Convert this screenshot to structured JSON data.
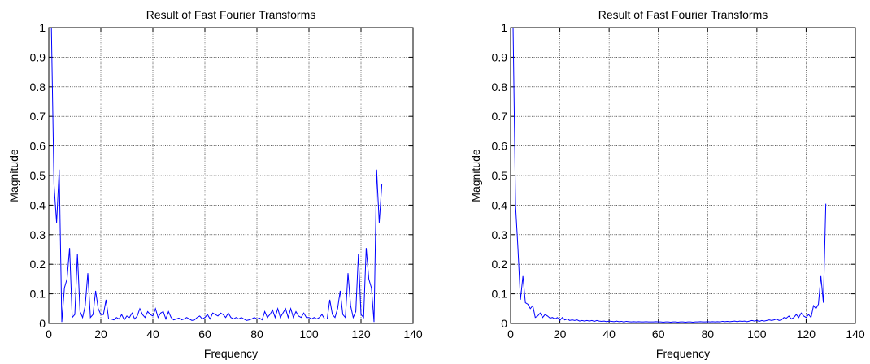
{
  "chart_data": [
    {
      "type": "line",
      "title": "Result of Fast Fourier Transforms",
      "xlabel": "Frequency",
      "ylabel": "Magnitude",
      "xlim": [
        0,
        140
      ],
      "ylim": [
        0,
        1
      ],
      "xticks": [
        "0",
        "20",
        "40",
        "60",
        "80",
        "100",
        "120",
        "140"
      ],
      "yticks": [
        "0",
        "0.1",
        "0.2",
        "0.3",
        "0.4",
        "0.5",
        "0.6",
        "0.7",
        "0.8",
        "0.9",
        "1"
      ],
      "grid": true,
      "line_color": "#0000ff",
      "series": [
        {
          "x": [
            1,
            2,
            3,
            4,
            5,
            6,
            7,
            8,
            9,
            10,
            11,
            12,
            13,
            14,
            15,
            16,
            17,
            18,
            19,
            20,
            21,
            22,
            23,
            24,
            25,
            26,
            27,
            28,
            29,
            30,
            31,
            32,
            33,
            34,
            35,
            36,
            37,
            38,
            39,
            40,
            41,
            42,
            43,
            44,
            45,
            46,
            47,
            48,
            49,
            50,
            51,
            52,
            53,
            54,
            55,
            56,
            57,
            58,
            59,
            60,
            61,
            62,
            63,
            64,
            65,
            66,
            67,
            68,
            69,
            70,
            71,
            72,
            73,
            74,
            75,
            76,
            77,
            78,
            79,
            80,
            81,
            82,
            83,
            84,
            85,
            86,
            87,
            88,
            89,
            90,
            91,
            92,
            93,
            94,
            95,
            96,
            97,
            98,
            99,
            100,
            101,
            102,
            103,
            104,
            105,
            106,
            107,
            108,
            109,
            110,
            111,
            112,
            113,
            114,
            115,
            116,
            117,
            118,
            119,
            120,
            121,
            122,
            123,
            124,
            125,
            126,
            127,
            128
          ],
          "values": [
            1.0,
            0.47,
            0.34,
            0.52,
            0.005,
            0.12,
            0.15,
            0.255,
            0.02,
            0.03,
            0.235,
            0.04,
            0.02,
            0.06,
            0.17,
            0.02,
            0.03,
            0.11,
            0.05,
            0.03,
            0.03,
            0.08,
            0.015,
            0.015,
            0.012,
            0.02,
            0.015,
            0.03,
            0.012,
            0.025,
            0.02,
            0.035,
            0.015,
            0.025,
            0.05,
            0.03,
            0.02,
            0.04,
            0.03,
            0.025,
            0.05,
            0.02,
            0.035,
            0.04,
            0.015,
            0.04,
            0.02,
            0.012,
            0.015,
            0.018,
            0.012,
            0.015,
            0.02,
            0.015,
            0.01,
            0.012,
            0.02,
            0.025,
            0.015,
            0.02,
            0.03,
            0.015,
            0.035,
            0.03,
            0.025,
            0.035,
            0.03,
            0.02,
            0.035,
            0.02,
            0.015,
            0.02,
            0.015,
            0.02,
            0.015,
            0.01,
            0.012,
            0.015,
            0.02,
            0.015,
            0.018,
            0.012,
            0.04,
            0.02,
            0.03,
            0.045,
            0.02,
            0.05,
            0.02,
            0.035,
            0.05,
            0.02,
            0.05,
            0.02,
            0.04,
            0.025,
            0.02,
            0.035,
            0.02,
            0.02,
            0.015,
            0.02,
            0.015,
            0.02,
            0.03,
            0.015,
            0.015,
            0.08,
            0.03,
            0.02,
            0.05,
            0.11,
            0.03,
            0.02,
            0.17,
            0.06,
            0.02,
            0.04,
            0.235,
            0.03,
            0.02,
            0.255,
            0.15,
            0.12,
            0.005,
            0.52,
            0.34,
            0.47
          ]
        }
      ]
    },
    {
      "type": "line",
      "title": "Result of Fast Fourier Transforms",
      "xlabel": "Frequency",
      "ylabel": "Magnitude",
      "xlim": [
        0,
        140
      ],
      "ylim": [
        0,
        1
      ],
      "xticks": [
        "0",
        "20",
        "40",
        "60",
        "80",
        "100",
        "120",
        "140"
      ],
      "yticks": [
        "0",
        "0.1",
        "0.2",
        "0.3",
        "0.4",
        "0.5",
        "0.6",
        "0.7",
        "0.8",
        "0.9",
        "1"
      ],
      "grid": true,
      "line_color": "#0000ff",
      "series": [
        {
          "x": [
            1,
            2,
            3,
            4,
            5,
            6,
            7,
            8,
            9,
            10,
            11,
            12,
            13,
            14,
            15,
            16,
            17,
            18,
            19,
            20,
            21,
            22,
            23,
            24,
            25,
            26,
            27,
            28,
            29,
            30,
            31,
            32,
            33,
            34,
            35,
            36,
            37,
            38,
            39,
            40,
            41,
            42,
            43,
            44,
            45,
            46,
            47,
            48,
            49,
            50,
            51,
            52,
            53,
            54,
            55,
            56,
            57,
            58,
            59,
            60,
            61,
            62,
            63,
            64,
            65,
            66,
            67,
            68,
            69,
            70,
            71,
            72,
            73,
            74,
            75,
            76,
            77,
            78,
            79,
            80,
            81,
            82,
            83,
            84,
            85,
            86,
            87,
            88,
            89,
            90,
            91,
            92,
            93,
            94,
            95,
            96,
            97,
            98,
            99,
            100,
            101,
            102,
            103,
            104,
            105,
            106,
            107,
            108,
            109,
            110,
            111,
            112,
            113,
            114,
            115,
            116,
            117,
            118,
            119,
            120,
            121,
            122,
            123,
            124,
            125,
            126,
            127,
            128
          ],
          "values": [
            1.0,
            0.4,
            0.25,
            0.08,
            0.16,
            0.07,
            0.065,
            0.05,
            0.06,
            0.02,
            0.025,
            0.035,
            0.02,
            0.03,
            0.025,
            0.018,
            0.02,
            0.015,
            0.02,
            0.01,
            0.02,
            0.012,
            0.015,
            0.01,
            0.012,
            0.01,
            0.012,
            0.008,
            0.01,
            0.008,
            0.01,
            0.008,
            0.01,
            0.007,
            0.01,
            0.008,
            0.007,
            0.008,
            0.006,
            0.008,
            0.007,
            0.006,
            0.008,
            0.006,
            0.007,
            0.005,
            0.007,
            0.006,
            0.005,
            0.006,
            0.005,
            0.006,
            0.005,
            0.005,
            0.006,
            0.005,
            0.005,
            0.005,
            0.006,
            0.005,
            0.005,
            0.004,
            0.005,
            0.005,
            0.004,
            0.005,
            0.005,
            0.004,
            0.005,
            0.005,
            0.004,
            0.005,
            0.005,
            0.004,
            0.005,
            0.005,
            0.006,
            0.005,
            0.005,
            0.006,
            0.005,
            0.006,
            0.005,
            0.006,
            0.005,
            0.007,
            0.006,
            0.007,
            0.006,
            0.007,
            0.008,
            0.006,
            0.008,
            0.007,
            0.008,
            0.006,
            0.008,
            0.01,
            0.008,
            0.01,
            0.007,
            0.01,
            0.008,
            0.01,
            0.012,
            0.01,
            0.012,
            0.015,
            0.01,
            0.012,
            0.02,
            0.018,
            0.025,
            0.015,
            0.02,
            0.03,
            0.02,
            0.035,
            0.025,
            0.02,
            0.03,
            0.02,
            0.06,
            0.05,
            0.065,
            0.16,
            0.07,
            0.405
          ]
        }
      ]
    }
  ]
}
